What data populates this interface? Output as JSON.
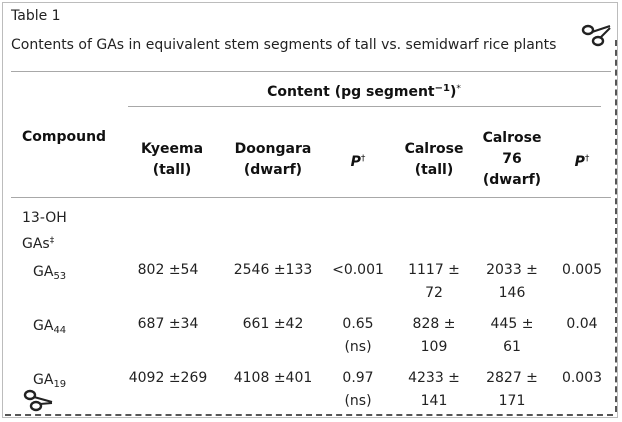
{
  "table": {
    "label": "Table 1",
    "caption": "Contents of GAs in equivalent stem segments of tall vs. semidwarf rice plants"
  },
  "headers": {
    "compound": "Compound",
    "content_main": "Content (pg segment",
    "content_exp": "−1",
    "content_close": ")",
    "content_note": "*",
    "kyeema": [
      "Kyeema",
      "(tall)"
    ],
    "doongara": [
      "Doongara",
      "(dwarf)"
    ],
    "p_label": "P",
    "p_note": "†",
    "calrose": [
      "Calrose",
      "(tall)"
    ],
    "calrose76": [
      "Calrose",
      "76",
      "(dwarf)"
    ]
  },
  "group": {
    "label_line1": "13-OH",
    "label_line2": "GAs",
    "note": "‡"
  },
  "rows": [
    {
      "name": "GA",
      "sub": "53",
      "kyeema": "802 ±54",
      "doongara": "2546 ±133",
      "p1": [
        "<0.001"
      ],
      "calrose": [
        "1117 ±",
        "72"
      ],
      "calrose76": [
        "2033 ±",
        "146"
      ],
      "p2": "0.005"
    },
    {
      "name": "GA",
      "sub": "44",
      "kyeema": "687 ±34",
      "doongara": "661 ±42",
      "p1": [
        "0.65",
        "(ns)"
      ],
      "calrose": [
        "828 ±",
        "109"
      ],
      "calrose76": [
        "445 ±",
        "61"
      ],
      "p2": "0.04"
    },
    {
      "name": "GA",
      "sub": "19",
      "kyeema": "4092 ±269",
      "doongara": "4108 ±401",
      "p1": [
        "0.97",
        "(ns)"
      ],
      "calrose": [
        "4233 ±",
        "141"
      ],
      "calrose76": [
        "2827 ±",
        "171"
      ],
      "p2": "0.003"
    }
  ]
}
